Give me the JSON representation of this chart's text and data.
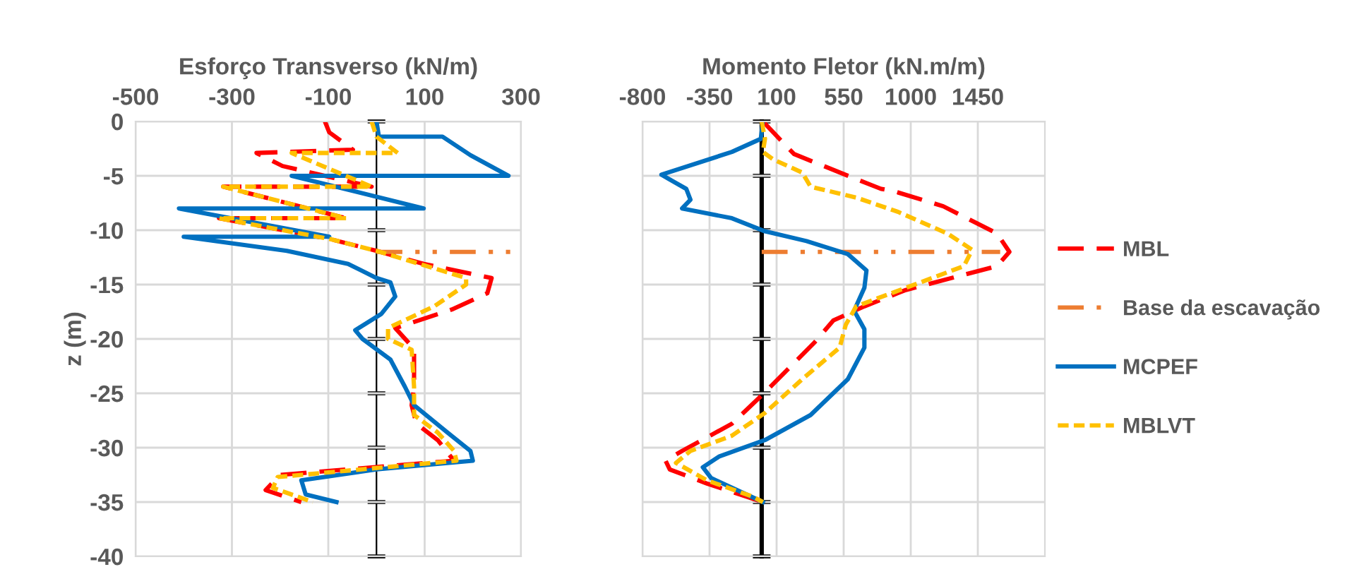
{
  "chart_data": [
    {
      "type": "line",
      "title": "Esforço Transverso (kN/m)",
      "ylabel": "z (m)",
      "xlim": [
        -500,
        300
      ],
      "xticks": [
        -500,
        -300,
        -100,
        100,
        300
      ],
      "ylim": [
        -40,
        0
      ],
      "yticks": [
        0,
        -5,
        -10,
        -15,
        -20,
        -25,
        -30,
        -35,
        -40
      ],
      "grid": true,
      "legend": false,
      "marker": "none",
      "series": [
        {
          "color": "#ff0000",
          "line_style": "dashed",
          "x": [
            -107,
            -98,
            -49,
            -249,
            -195,
            -10,
            -318,
            -63,
            -327,
            -98,
            0,
            98,
            239,
            230,
            156,
            39,
            78,
            78,
            73,
            83,
            127,
            161,
            -200,
            -230,
            -156
          ],
          "values": [
            0,
            -1,
            -2.6,
            -2.9,
            -4.1,
            -6,
            -6,
            -8.9,
            -8.9,
            -10.8,
            -11.9,
            -13.1,
            -14.4,
            -15.8,
            -17.3,
            -19,
            -20.9,
            -24.4,
            -26.1,
            -27.8,
            -29.3,
            -31.2,
            -32.5,
            -33.9,
            -35
          ]
        },
        {
          "color": "#ed7d31",
          "line_style": "dashdot",
          "x": [
            0,
            300
          ],
          "values": [
            -12,
            -12
          ]
        },
        {
          "color": "#0070c0",
          "line_style": "solid",
          "x": [
            0,
            5,
            137,
            195,
            274,
            -176,
            98,
            -410,
            -98,
            -400,
            -186,
            -59,
            0,
            29,
            39,
            10,
            -44,
            -29,
            29,
            59,
            78,
            147,
            195,
            200,
            0,
            -156,
            -147,
            -83
          ],
          "values": [
            0,
            -1.4,
            -1.4,
            -3.1,
            -5,
            -5,
            -8,
            -8,
            -10.6,
            -10.6,
            -11.9,
            -13.1,
            -14.4,
            -14.8,
            -16.1,
            -17.7,
            -19.2,
            -20,
            -21.9,
            -24.4,
            -26.1,
            -28.6,
            -30.3,
            -31.2,
            -32,
            -33,
            -34.3,
            -35
          ]
        },
        {
          "color": "#ffc000",
          "line_style": "dotted",
          "x": [
            -10,
            0,
            44,
            -176,
            -10,
            -318,
            -63,
            -327,
            -98,
            0,
            186,
            186,
            120,
            24,
            24,
            73,
            78,
            78,
            127,
            161,
            166,
            -205,
            -215,
            -132
          ],
          "values": [
            0,
            -1.4,
            -2.9,
            -2.9,
            -6,
            -6,
            -8.9,
            -8.9,
            -10.8,
            -11.9,
            -14.4,
            -15,
            -17,
            -19,
            -20,
            -21,
            -24.4,
            -27,
            -28.6,
            -30.3,
            -31.2,
            -32.7,
            -33.7,
            -35
          ]
        }
      ]
    },
    {
      "type": "line",
      "title": "Momento Fletor (kN.m/m)",
      "xlim": [
        -800,
        1900
      ],
      "xticks": [
        -800,
        -350,
        100,
        550,
        1000,
        1450
      ],
      "ylim": [
        -40,
        0
      ],
      "yticks": [
        0,
        -5,
        -10,
        -15,
        -20,
        -25,
        -30,
        -35,
        -40
      ],
      "tick_labels": "x",
      "grid": true,
      "legend": "right",
      "marker": "none",
      "series": [
        {
          "name": "MBL",
          "color": "#ff0000",
          "line_style": "dashed",
          "x": [
            8,
            217,
            634,
            801,
            884,
            1218,
            1579,
            1662,
            1579,
            1357,
            967,
            689,
            481,
            356,
            22,
            -200,
            -534,
            -645,
            -617,
            -367,
            8
          ],
          "values": [
            0,
            -3,
            -5.3,
            -6.2,
            -6.4,
            -7.8,
            -10.3,
            -12,
            -13.3,
            -14.1,
            -15.5,
            -17,
            -18.3,
            -20.3,
            -24.9,
            -27.8,
            -30.3,
            -31.2,
            -32,
            -33.3,
            -35
          ]
        },
        {
          "name": "Base da escavação",
          "color": "#ed7d31",
          "line_style": "dashdot",
          "x": [
            0,
            1600
          ],
          "values": [
            -12,
            -12
          ]
        },
        {
          "name": "MCPEF",
          "color": "#0070c0",
          "line_style": "solid",
          "x": [
            8,
            -6,
            -200,
            -673,
            -506,
            -478,
            -534,
            -200,
            22,
            300,
            578,
            703,
            689,
            620,
            689,
            689,
            578,
            328,
            22,
            -284,
            -395,
            -339,
            8
          ],
          "values": [
            0,
            -1.6,
            -2.8,
            -4.9,
            -6.2,
            -7.2,
            -8,
            -8.9,
            -10.1,
            -11,
            -12.2,
            -13.7,
            -15.3,
            -17.4,
            -19.1,
            -20.8,
            -23.7,
            -27,
            -29.3,
            -30.8,
            -31.8,
            -32.8,
            -35
          ]
        },
        {
          "name": "MBLVT",
          "color": "#ffc000",
          "line_style": "dotted",
          "x": [
            0,
            22,
            8,
            78,
            272,
            328,
            634,
            912,
            1245,
            1412,
            1357,
            967,
            634,
            564,
            523,
            272,
            22,
            -200,
            -478,
            -575,
            -367,
            -61,
            8
          ],
          "values": [
            0,
            -1.6,
            -2.8,
            -3.5,
            -4.7,
            -6,
            -7,
            -8.3,
            -10.3,
            -11.8,
            -13.3,
            -15.3,
            -17,
            -18.7,
            -20.8,
            -23.7,
            -26.8,
            -28.9,
            -30.3,
            -31.4,
            -33,
            -34.5,
            -35
          ]
        }
      ]
    }
  ]
}
